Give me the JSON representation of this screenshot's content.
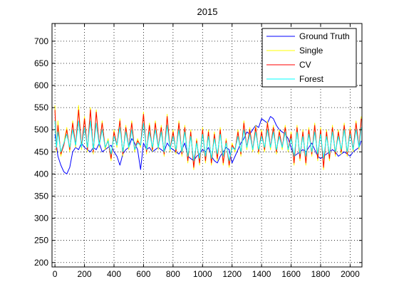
{
  "chart_data": {
    "type": "line",
    "title": "2015",
    "xlabel": "",
    "ylabel": "",
    "xlim": [
      -20,
      2080
    ],
    "ylim": [
      190,
      740
    ],
    "xticks": [
      0,
      200,
      400,
      600,
      800,
      1000,
      1200,
      1400,
      1600,
      1800,
      2000
    ],
    "yticks": [
      200,
      250,
      300,
      350,
      400,
      450,
      500,
      550,
      600,
      650,
      700
    ],
    "grid": true,
    "grid_style": "dotted",
    "legend_position": "top-right",
    "series": [
      {
        "name": "Ground Truth",
        "color": "#0000ff",
        "x": [
          0,
          10,
          20,
          40,
          60,
          80,
          100,
          120,
          140,
          160,
          180,
          200,
          220,
          240,
          260,
          280,
          300,
          320,
          340,
          360,
          380,
          400,
          420,
          440,
          460,
          480,
          500,
          520,
          540,
          560,
          580,
          600,
          620,
          640,
          660,
          680,
          700,
          720,
          740,
          760,
          780,
          800,
          820,
          840,
          860,
          880,
          900,
          920,
          940,
          960,
          980,
          1000,
          1020,
          1040,
          1060,
          1080,
          1100,
          1120,
          1140,
          1160,
          1180,
          1200,
          1220,
          1240,
          1260,
          1280,
          1300,
          1320,
          1340,
          1360,
          1380,
          1400,
          1420,
          1440,
          1460,
          1480,
          1500,
          1520,
          1540,
          1560,
          1580,
          1600,
          1620,
          1640,
          1660,
          1680,
          1700,
          1720,
          1740,
          1760,
          1780,
          1800,
          1820,
          1840,
          1860,
          1880,
          1900,
          1920,
          1940,
          1960,
          1980,
          2000,
          2020,
          2040,
          2060,
          2075
        ],
        "values": [
          490,
          465,
          440,
          420,
          405,
          400,
          415,
          450,
          460,
          455,
          470,
          460,
          455,
          450,
          460,
          455,
          470,
          450,
          455,
          460,
          465,
          450,
          440,
          420,
          445,
          455,
          460,
          480,
          470,
          455,
          410,
          470,
          455,
          460,
          450,
          455,
          460,
          455,
          450,
          470,
          460,
          455,
          450,
          445,
          455,
          470,
          440,
          435,
          430,
          440,
          445,
          455,
          450,
          460,
          440,
          430,
          425,
          440,
          450,
          460,
          455,
          425,
          440,
          455,
          470,
          480,
          495,
          490,
          500,
          510,
          505,
          525,
          520,
          515,
          530,
          525,
          510,
          500,
          495,
          490,
          480,
          460,
          440,
          445,
          450,
          455,
          450,
          460,
          470,
          455,
          440,
          435,
          440,
          445,
          450,
          455,
          450,
          440,
          445,
          450,
          445,
          440,
          450,
          455,
          460,
          475
        ]
      },
      {
        "name": "Single",
        "color": "#ffff00",
        "x": [
          0,
          10,
          20,
          40,
          60,
          80,
          100,
          120,
          140,
          160,
          180,
          200,
          220,
          240,
          260,
          280,
          300,
          320,
          340,
          360,
          380,
          400,
          420,
          440,
          460,
          480,
          500,
          520,
          540,
          560,
          580,
          600,
          620,
          640,
          660,
          680,
          700,
          720,
          740,
          760,
          780,
          800,
          820,
          840,
          860,
          880,
          900,
          920,
          940,
          960,
          980,
          1000,
          1020,
          1040,
          1060,
          1080,
          1100,
          1120,
          1140,
          1160,
          1180,
          1200,
          1220,
          1240,
          1260,
          1280,
          1300,
          1320,
          1340,
          1360,
          1380,
          1400,
          1420,
          1440,
          1460,
          1480,
          1500,
          1520,
          1540,
          1560,
          1580,
          1600,
          1620,
          1640,
          1660,
          1680,
          1700,
          1720,
          1740,
          1760,
          1780,
          1800,
          1820,
          1840,
          1860,
          1880,
          1900,
          1920,
          1940,
          1960,
          1980,
          2000,
          2020,
          2040,
          2060,
          2075
        ],
        "values": [
          555,
          450,
          520,
          440,
          470,
          505,
          450,
          520,
          460,
          555,
          455,
          530,
          450,
          550,
          445,
          545,
          460,
          520,
          455,
          480,
          430,
          500,
          460,
          525,
          440,
          510,
          455,
          520,
          450,
          480,
          460,
          540,
          445,
          515,
          450,
          520,
          455,
          510,
          440,
          535,
          450,
          500,
          445,
          520,
          440,
          510,
          425,
          500,
          410,
          480,
          420,
          505,
          425,
          500,
          420,
          495,
          430,
          505,
          420,
          480,
          415,
          470,
          450,
          500,
          440,
          520,
          455,
          505,
          450,
          510,
          445,
          500,
          450,
          520,
          455,
          510,
          445,
          500,
          455,
          510,
          450,
          495,
          420,
          510,
          430,
          500,
          420,
          505,
          440,
          515,
          430,
          505,
          410,
          500,
          430,
          510,
          440,
          500,
          445,
          515,
          440,
          505,
          450,
          520,
          455,
          530
        ]
      },
      {
        "name": "CV",
        "color": "#ff0000",
        "x": [
          0,
          10,
          20,
          40,
          60,
          80,
          100,
          120,
          140,
          160,
          180,
          200,
          220,
          240,
          260,
          280,
          300,
          320,
          340,
          360,
          380,
          400,
          420,
          440,
          460,
          480,
          500,
          520,
          540,
          560,
          580,
          600,
          620,
          640,
          660,
          680,
          700,
          720,
          740,
          760,
          780,
          800,
          820,
          840,
          860,
          880,
          900,
          920,
          940,
          960,
          980,
          1000,
          1020,
          1040,
          1060,
          1080,
          1100,
          1120,
          1140,
          1160,
          1180,
          1200,
          1220,
          1240,
          1260,
          1280,
          1300,
          1320,
          1340,
          1360,
          1380,
          1400,
          1420,
          1440,
          1460,
          1480,
          1500,
          1520,
          1540,
          1560,
          1580,
          1600,
          1620,
          1640,
          1660,
          1680,
          1700,
          1720,
          1740,
          1760,
          1780,
          1800,
          1820,
          1840,
          1860,
          1880,
          1900,
          1920,
          1940,
          1960,
          1980,
          2000,
          2020,
          2040,
          2060,
          2075
        ],
        "values": [
          545,
          455,
          510,
          445,
          465,
          500,
          455,
          515,
          465,
          545,
          460,
          525,
          455,
          545,
          450,
          540,
          465,
          515,
          460,
          475,
          435,
          495,
          465,
          520,
          445,
          505,
          460,
          515,
          455,
          475,
          465,
          535,
          450,
          510,
          455,
          515,
          460,
          505,
          445,
          530,
          455,
          495,
          450,
          515,
          445,
          505,
          430,
          495,
          415,
          475,
          425,
          500,
          430,
          495,
          425,
          490,
          435,
          500,
          425,
          475,
          420,
          465,
          455,
          495,
          445,
          515,
          460,
          500,
          455,
          505,
          450,
          495,
          455,
          515,
          460,
          505,
          450,
          495,
          460,
          505,
          455,
          490,
          425,
          505,
          435,
          495,
          425,
          500,
          445,
          510,
          435,
          500,
          415,
          495,
          435,
          505,
          445,
          495,
          450,
          510,
          445,
          500,
          455,
          515,
          460,
          525
        ]
      },
      {
        "name": "Forest",
        "color": "#00ffff",
        "x": [
          0,
          10,
          20,
          40,
          60,
          80,
          100,
          120,
          140,
          160,
          180,
          200,
          220,
          240,
          260,
          280,
          300,
          320,
          340,
          360,
          380,
          400,
          420,
          440,
          460,
          480,
          500,
          520,
          540,
          560,
          580,
          600,
          620,
          640,
          660,
          680,
          700,
          720,
          740,
          760,
          780,
          800,
          820,
          840,
          860,
          880,
          900,
          920,
          940,
          960,
          980,
          1000,
          1020,
          1040,
          1060,
          1080,
          1100,
          1120,
          1140,
          1160,
          1180,
          1200,
          1220,
          1240,
          1260,
          1280,
          1300,
          1320,
          1340,
          1360,
          1380,
          1400,
          1420,
          1440,
          1460,
          1480,
          1500,
          1520,
          1540,
          1560,
          1580,
          1600,
          1620,
          1640,
          1660,
          1680,
          1700,
          1720,
          1740,
          1760,
          1780,
          1800,
          1820,
          1840,
          1860,
          1880,
          1900,
          1920,
          1940,
          1960,
          1980,
          2000,
          2020,
          2040,
          2060,
          2075
        ],
        "values": [
          520,
          460,
          495,
          450,
          470,
          490,
          460,
          500,
          465,
          520,
          460,
          505,
          460,
          520,
          455,
          515,
          465,
          500,
          460,
          475,
          445,
          485,
          465,
          505,
          450,
          495,
          460,
          500,
          455,
          470,
          465,
          515,
          455,
          495,
          460,
          500,
          460,
          495,
          450,
          510,
          455,
          485,
          455,
          500,
          450,
          495,
          440,
          485,
          430,
          470,
          435,
          490,
          440,
          485,
          435,
          480,
          445,
          490,
          440,
          470,
          430,
          460,
          455,
          485,
          450,
          500,
          460,
          490,
          455,
          495,
          455,
          485,
          460,
          500,
          460,
          495,
          455,
          485,
          460,
          495,
          455,
          480,
          440,
          495,
          445,
          485,
          440,
          490,
          450,
          495,
          445,
          490,
          435,
          485,
          445,
          495,
          450,
          485,
          455,
          500,
          450,
          490,
          455,
          500,
          460,
          505
        ]
      }
    ]
  }
}
